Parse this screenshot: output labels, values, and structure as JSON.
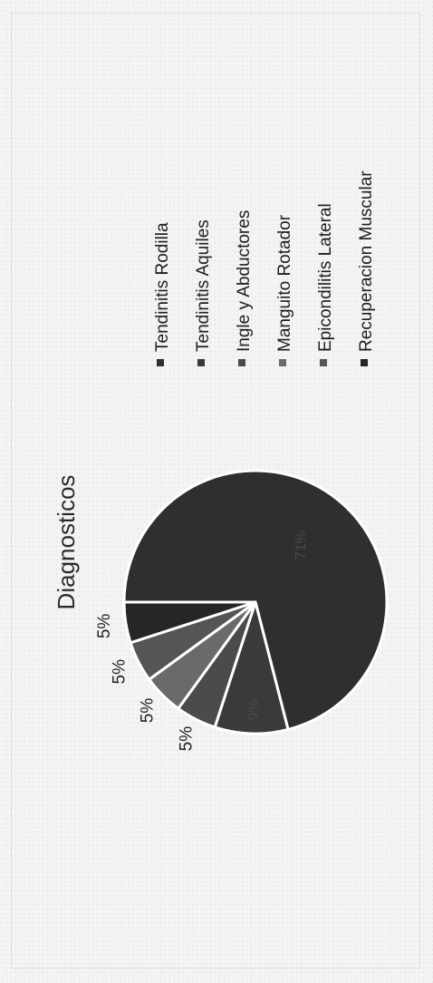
{
  "chart_data": {
    "type": "pie",
    "title": "Diagnosticos",
    "categories": [
      "Tendinitis Rodilla",
      "Tendinitis Aquiles",
      "Ingle y Abductores",
      "Manguito Rotador",
      "Epicondilitis Lateral",
      "Recuperacion Muscular"
    ],
    "values": [
      71,
      9,
      5,
      5,
      5,
      5
    ],
    "labels": [
      "71%",
      "9%",
      "5%",
      "5%",
      "5%",
      "5%"
    ],
    "colors": [
      "#2f2f2f",
      "#3a3a3a",
      "#4b4b4b",
      "#6a6a6a",
      "#555555",
      "#262626"
    ],
    "legend": {
      "position": "right",
      "entries": [
        "Tendinitis Rodilla",
        "Tendinitis Aquiles",
        "Ingle y Abductores",
        "Manguito Rotador",
        "Epicondilitis Lateral",
        "Recuperacion Muscular"
      ]
    },
    "orientation": "rotated-90-ccw"
  }
}
